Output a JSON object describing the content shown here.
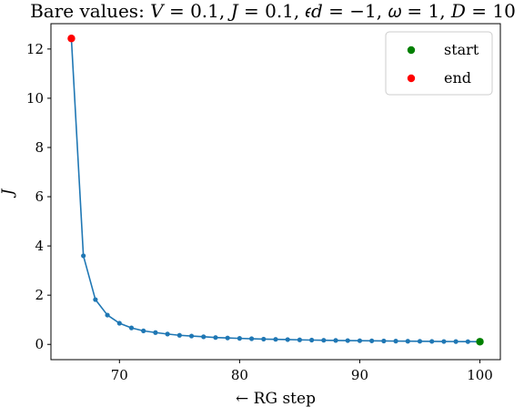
{
  "chart_data": {
    "type": "line",
    "title": "Bare values: V = 0.1, J = 0.1, ϵ_d = −1, ω = 1, D = 10",
    "title_display": "Bare values: 𝑉 = 0.1, 𝐽 = 0.1, 𝜖𝑑 = −1, 𝜔 = 1, 𝐷 = 10",
    "xlabel": "← RG step",
    "ylabel": "J",
    "xlim": [
      64.3,
      101.7
    ],
    "ylim": [
      -0.62,
      13.03
    ],
    "xticks": [
      70,
      80,
      90,
      100
    ],
    "yticks": [
      0,
      2,
      4,
      6,
      8,
      10,
      12
    ],
    "grid": false,
    "legend_position": "top-right",
    "series": [
      {
        "color": "#1f77b4",
        "x": [
          66,
          67,
          68,
          69,
          70,
          71,
          72,
          73,
          74,
          75,
          76,
          77,
          78,
          79,
          80,
          81,
          82,
          83,
          84,
          85,
          86,
          87,
          88,
          89,
          90,
          91,
          92,
          93,
          94,
          95,
          96,
          97,
          98,
          99,
          100
        ],
        "y": [
          12.43,
          3.6,
          1.82,
          1.19,
          0.86,
          0.67,
          0.55,
          0.48,
          0.42,
          0.37,
          0.34,
          0.31,
          0.28,
          0.26,
          0.245,
          0.23,
          0.215,
          0.205,
          0.195,
          0.185,
          0.175,
          0.168,
          0.161,
          0.155,
          0.149,
          0.144,
          0.139,
          0.134,
          0.13,
          0.126,
          0.122,
          0.118,
          0.115,
          0.112,
          0.11
        ]
      }
    ],
    "markers": [
      {
        "name": "start",
        "x": 100,
        "y": 0.11,
        "color": "#008000"
      },
      {
        "name": "end",
        "x": 66,
        "y": 12.43,
        "color": "#ff0000"
      }
    ]
  }
}
